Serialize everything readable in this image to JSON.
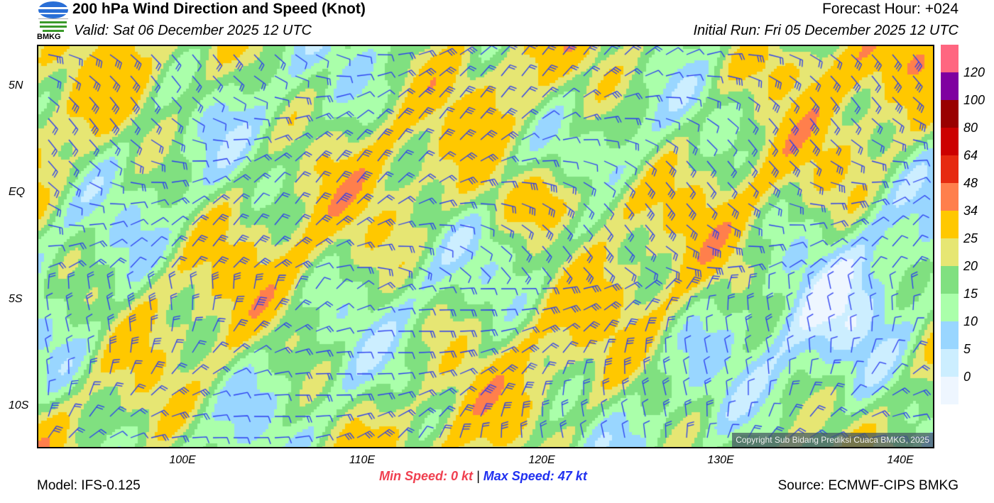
{
  "header": {
    "title": "200 hPa Wind Direction and Speed (Knot)",
    "valid": "Valid: Sat 06 December 2025 12 UTC",
    "forecast_hour": "Forecast Hour: +024",
    "initial_run": "Initial Run: Fri 05 December 2025 12 UTC",
    "logo_text": "BMKG"
  },
  "map": {
    "lat_labels": [
      "5N",
      "EQ",
      "5S",
      "10S"
    ],
    "lon_labels": [
      "100E",
      "110E",
      "120E",
      "130E",
      "140E"
    ],
    "copyright": "Copyright Sub Bidang Prediksi Cuaca BMKG, 2025",
    "extent_deg": {
      "lon": [
        91.9,
        141.9
      ],
      "lat": [
        -12,
        7
      ]
    }
  },
  "colorbar": {
    "labels": [
      "120",
      "100",
      "80",
      "64",
      "48",
      "34",
      "25",
      "20",
      "15",
      "10",
      "5",
      "0"
    ],
    "colors": [
      "#ff6680",
      "#7f00a0",
      "#990000",
      "#cc0000",
      "#e62a10",
      "#ff7f4c",
      "#ffc800",
      "#e6e673",
      "#80e080",
      "#aaffaa",
      "#99d6ff",
      "#cceeff",
      "#eef6ff"
    ],
    "thresholds": [
      120,
      100,
      80,
      64,
      48,
      34,
      25,
      20,
      15,
      10,
      5,
      0
    ]
  },
  "footer": {
    "model": "Model: IFS-0.125",
    "min_speed": "Min Speed:   0 kt",
    "separator": "|",
    "max_speed": "Max Speed:  47 kt",
    "source": "Source: ECMWF-CIPS BMKG"
  },
  "barb_color": "#2a3cf0"
}
